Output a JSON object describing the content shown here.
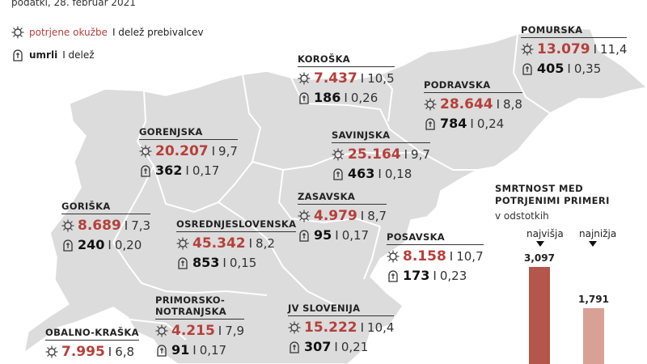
{
  "header": {
    "date_text": "podatki, 28. februar 2021"
  },
  "legend": {
    "infections_label": "potrjene okužbe",
    "infections_suffix": "I delež prebivalcev",
    "deaths_label": "umrli",
    "deaths_suffix": "I delež"
  },
  "separator": "I",
  "regions": [
    {
      "name": "POMURSKA",
      "infections": "13.079",
      "infections_share": "11,4",
      "deaths": "405",
      "deaths_share": "0,35"
    },
    {
      "name": "KOROŠKA",
      "infections": "7.437",
      "infections_share": "10,5",
      "deaths": "186",
      "deaths_share": "0,26"
    },
    {
      "name": "PODRAVSKA",
      "infections": "28.644",
      "infections_share": "8,8",
      "deaths": "784",
      "deaths_share": "0,24"
    },
    {
      "name": "GORENJSKA",
      "infections": "20.207",
      "infections_share": "9,7",
      "deaths": "362",
      "deaths_share": "0,17"
    },
    {
      "name": "SAVINJSKA",
      "infections": "25.164",
      "infections_share": "9,7",
      "deaths": "463",
      "deaths_share": "0,18"
    },
    {
      "name": "ZASAVSKA",
      "infections": "4.979",
      "infections_share": "8,7",
      "deaths": "95",
      "deaths_share": "0,17"
    },
    {
      "name": "GORIŠKA",
      "infections": "8.689",
      "infections_share": "7,3",
      "deaths": "240",
      "deaths_share": "0,20"
    },
    {
      "name": "OSREDNJESLOVENSKA",
      "infections": "45.342",
      "infections_share": "8,2",
      "deaths": "853",
      "deaths_share": "0,15"
    },
    {
      "name": "POSAVSKA",
      "infections": "8.158",
      "infections_share": "10,7",
      "deaths": "173",
      "deaths_share": "0,23"
    },
    {
      "name": "PRIMORSKO-\nNOTRANJSKA",
      "infections": "4.215",
      "infections_share": "7,9",
      "deaths": "91",
      "deaths_share": "0,17"
    },
    {
      "name": "JV SLOVENIJA",
      "infections": "15.222",
      "infections_share": "10,4",
      "deaths": "307",
      "deaths_share": "0,21"
    },
    {
      "name": "OBALNO-KRAŠKA",
      "infections": "7.995",
      "infections_share": "6,8",
      "deaths": "",
      "deaths_share": ""
    }
  ],
  "sidebar": {
    "title": "SMRTNOST MED POTRJENIMI PRIMERI",
    "subtitle": "v odstotkih",
    "highest_label": "najvišja",
    "lowest_label": "najnižja",
    "highest_value": "3,097",
    "lowest_value": "1,791",
    "highest_num": 3.097,
    "lowest_num": 1.791,
    "highest_color": "#b5564c",
    "lowest_color": "#d9a096"
  },
  "colors": {
    "map_fill": "#dcdcdc",
    "border": "#ffffff",
    "accent_red": "#b5403a"
  }
}
